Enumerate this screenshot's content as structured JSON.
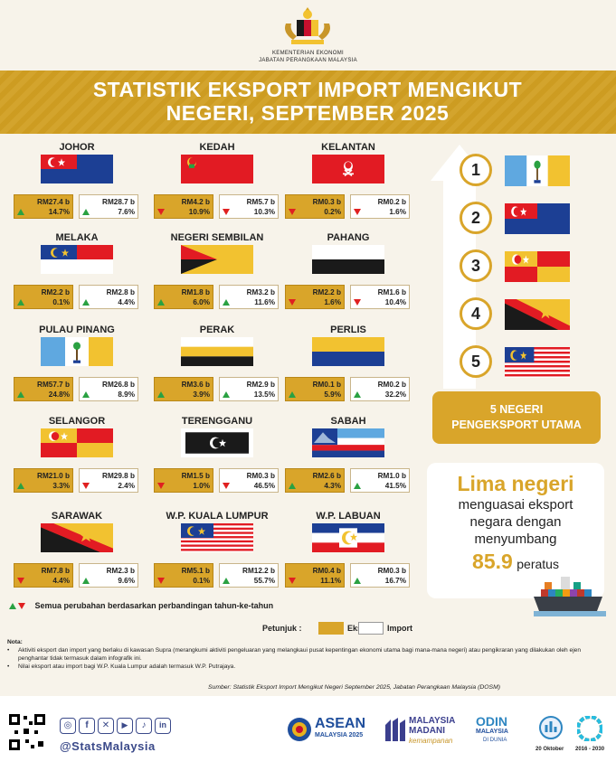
{
  "header": {
    "ministry_line1": "KEMENTERIAN EKONOMI",
    "ministry_line2": "JABATAN PERANGKAAN MALAYSIA",
    "title_line1": "STATISTIK EKSPORT IMPORT MENGIKUT",
    "title_line2": "NEGERI, SEPTEMBER 2025"
  },
  "states": [
    {
      "name": "JOHOR",
      "export_value": "RM27.4 b",
      "export_change": "14.7%",
      "export_dir": "up",
      "import_value": "RM28.7 b",
      "import_change": "7.6%",
      "import_dir": "up"
    },
    {
      "name": "KEDAH",
      "export_value": "RM4.2 b",
      "export_change": "10.9%",
      "export_dir": "down",
      "import_value": "RM5.7 b",
      "import_change": "10.3%",
      "import_dir": "down"
    },
    {
      "name": "KELANTAN",
      "export_value": "RM0.3 b",
      "export_change": "0.2%",
      "export_dir": "down",
      "import_value": "RM0.2 b",
      "import_change": "1.6%",
      "import_dir": "down"
    },
    {
      "name": "MELAKA",
      "export_value": "RM2.2 b",
      "export_change": "0.1%",
      "export_dir": "up",
      "import_value": "RM2.8 b",
      "import_change": "4.4%",
      "import_dir": "up"
    },
    {
      "name": "NEGERI SEMBILAN",
      "export_value": "RM1.8 b",
      "export_change": "6.0%",
      "export_dir": "up",
      "import_value": "RM3.2 b",
      "import_change": "11.6%",
      "import_dir": "up"
    },
    {
      "name": "PAHANG",
      "export_value": "RM2.2 b",
      "export_change": "1.6%",
      "export_dir": "down",
      "import_value": "RM1.6 b",
      "import_change": "10.4%",
      "import_dir": "down"
    },
    {
      "name": "PULAU PINANG",
      "export_value": "RM57.7 b",
      "export_change": "24.8%",
      "export_dir": "up",
      "import_value": "RM26.8 b",
      "import_change": "8.9%",
      "import_dir": "up"
    },
    {
      "name": "PERAK",
      "export_value": "RM3.6 b",
      "export_change": "3.9%",
      "export_dir": "up",
      "import_value": "RM2.9 b",
      "import_change": "13.5%",
      "import_dir": "up"
    },
    {
      "name": "PERLIS",
      "export_value": "RM0.1 b",
      "export_change": "5.9%",
      "export_dir": "up",
      "import_value": "RM0.2 b",
      "import_change": "32.2%",
      "import_dir": "up"
    },
    {
      "name": "SELANGOR",
      "export_value": "RM21.0 b",
      "export_change": "3.3%",
      "export_dir": "up",
      "import_value": "RM29.8 b",
      "import_change": "2.4%",
      "import_dir": "down"
    },
    {
      "name": "TERENGGANU",
      "export_value": "RM1.5 b",
      "export_change": "1.0%",
      "export_dir": "down",
      "import_value": "RM0.3 b",
      "import_change": "46.5%",
      "import_dir": "down"
    },
    {
      "name": "SABAH",
      "export_value": "RM2.6 b",
      "export_change": "4.3%",
      "export_dir": "up",
      "import_value": "RM1.0 b",
      "import_change": "41.5%",
      "import_dir": "up"
    },
    {
      "name": "SARAWAK",
      "export_value": "RM7.8 b",
      "export_change": "4.4%",
      "export_dir": "down",
      "import_value": "RM2.3 b",
      "import_change": "9.6%",
      "import_dir": "up"
    },
    {
      "name": "W.P. KUALA LUMPUR",
      "export_value": "RM5.1 b",
      "export_change": "0.1%",
      "export_dir": "down",
      "import_value": "RM12.2 b",
      "import_change": "55.7%",
      "import_dir": "up"
    },
    {
      "name": "W.P. LABUAN",
      "export_value": "RM0.4 b",
      "export_change": "11.1%",
      "export_dir": "down",
      "import_value": "RM0.3 b",
      "import_change": "16.7%",
      "import_dir": "up"
    }
  ],
  "top5": {
    "ranks": [
      "1",
      "2",
      "3",
      "4",
      "5"
    ],
    "title_line1": "5 NEGERI",
    "title_line2": "PENGEKSPORT UTAMA"
  },
  "summary": {
    "headline": "Lima negeri",
    "line1": "menguasai eksport",
    "line2": "negara dengan",
    "line3": "menyumbang",
    "percent": "85.9",
    "percent_word": "peratus"
  },
  "legend": {
    "change_note": "Semua perubahan berdasarkan perbandingan tahun-ke-tahun",
    "petunjuk": "Petunjuk :",
    "export_label": "Eksport",
    "import_label": "Import"
  },
  "notes": {
    "heading": "Nota:",
    "item1": "Aktiviti eksport dan import yang berlaku di kawasan Supra (merangkumi aktiviti pengeluaran yang melangkaui pusat kepentingan ekonomi utama bagi mana-mana negeri) atau pengikraran yang dilakukan oleh ejen penghantar tidak termasuk dalam infografik ini.",
    "item2": "Nilai eksport atau import bagi W.P. Kuala Lumpur adalah termasuk W.P. Putrajaya."
  },
  "source": "Sumber: Statistik Eksport Import Mengikut Negeri September 2025, Jabatan Perangkaan Malaysia (DOSM)",
  "footer": {
    "handle": "@StatsMalaysia",
    "asean": "ASEAN",
    "asean_sub": "MALAYSIA 2025",
    "madani_line1": "MALAYSIA",
    "madani_line2": "MADANI",
    "madani_line3": "kemampanan",
    "odin": "ODIN",
    "odin_sub": "MALAYSIA",
    "odin_rank": "DI DUNIA",
    "date_label": "20 Oktober",
    "sdg_label": "2016 - 2030"
  },
  "colors": {
    "gold": "#d9a52a",
    "title_band": "#d19f22",
    "up": "#2aa142",
    "down": "#e02020"
  }
}
